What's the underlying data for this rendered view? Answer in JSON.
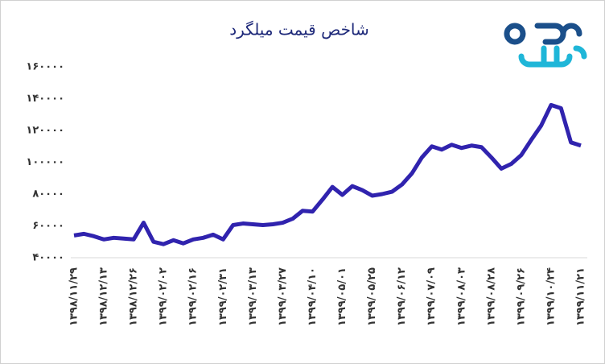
{
  "chart_data": {
    "type": "line",
    "title": "شاخص قیمت میلگرد",
    "categories": [
      "۱۳۹۸/۱۱/۲۹",
      null,
      null,
      "۱۳۹۸/۱۲/۱۳",
      null,
      null,
      "۱۳۹۸/۱۲/۲۶",
      null,
      null,
      "۱۳۹۹/۰۲/۰۲",
      null,
      null,
      "۱۳۹۹/۰۲/۱۶",
      null,
      null,
      "۱۳۹۹/۰۲/۳۱",
      null,
      null,
      "۱۳۹۹/۰۳/۱۳",
      null,
      null,
      "۱۳۹۹/۰۳/۲۷",
      null,
      null,
      "۱۳۹۹/۰۴/۱۰",
      null,
      null,
      "۱۳۹۹/۰۵/۰۱",
      null,
      null,
      "۱۳۹۹/۰۵/۲۵",
      null,
      null,
      "۱۳۹۹/۰۶/۱۲",
      null,
      null,
      "۱۳۹۹/۰۷/۰۹",
      null,
      null,
      "۱۳۹۹/۰۸/۰۳",
      null,
      null,
      "۱۳۹۹/۰۸/۲۸",
      null,
      null,
      "۱۳۹۹/۰۹/۲۶",
      null,
      null,
      "۱۳۹۹/۱۰/۲۴",
      null,
      null,
      "۱۳۹۹/۱۱/۲۱"
    ],
    "series": [
      {
        "name": "شاخص قیمت میلگرد",
        "color": "#3023ae",
        "values": [
          54000,
          55000,
          53500,
          51500,
          52500,
          52000,
          51500,
          62000,
          50000,
          48500,
          51000,
          49000,
          51500,
          52500,
          54500,
          51500,
          60500,
          61500,
          61000,
          60500,
          61000,
          62000,
          64500,
          69500,
          69000,
          76500,
          84500,
          79500,
          85000,
          82500,
          79000,
          80000,
          81500,
          86000,
          93000,
          103000,
          110000,
          108000,
          111000,
          109000,
          110500,
          109500,
          103000,
          96000,
          99000,
          104500,
          114000,
          123000,
          136000,
          134000,
          112500,
          110500
        ]
      }
    ],
    "ylim": [
      40000,
      160000
    ],
    "yticks": [
      {
        "value": 40000,
        "label": "۴۰۰۰۰"
      },
      {
        "value": 60000,
        "label": "۶۰۰۰۰"
      },
      {
        "value": 80000,
        "label": "۸۰۰۰۰"
      },
      {
        "value": 100000,
        "label": "۱۰۰۰۰۰"
      },
      {
        "value": 120000,
        "label": "۱۲۰۰۰۰"
      },
      {
        "value": 140000,
        "label": "۱۴۰۰۰۰"
      },
      {
        "value": 160000,
        "label": "۱۶۰۰۰۰"
      }
    ],
    "grid": false
  }
}
